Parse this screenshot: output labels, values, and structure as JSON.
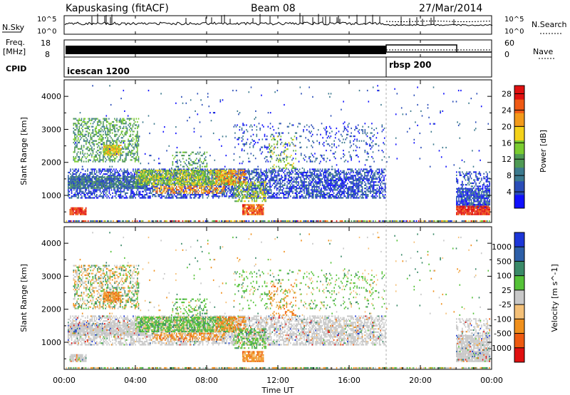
{
  "header": {
    "station": "Kapuskasing (fitACF)",
    "beam": "Beam 08",
    "date": "27/Mar/2014"
  },
  "noise_panel": {
    "left_label": "N.Sky",
    "right_label": "N.Search",
    "tick_top": "10^5",
    "tick_bottom": "10^0",
    "right_tick_top": "10^5",
    "right_tick_bottom": "10^0"
  },
  "freq_panel": {
    "label_line1": "Freq.",
    "label_line2": "[MHz]",
    "tick_top": "18",
    "tick_bottom": "8",
    "right_label": "Nave",
    "right_tick_top": "60",
    "right_tick_bottom": "0"
  },
  "cpid_panel": {
    "label": "CPID",
    "modes": [
      "icescan 1200",
      "rbsp 200"
    ]
  },
  "chart_data": [
    {
      "type": "heatmap",
      "title": "",
      "ylabel": "Slant Range [km]",
      "xlabel": "",
      "y_ticks": [
        "1000",
        "2000",
        "3000",
        "4000"
      ],
      "ylim": [
        180,
        4500
      ],
      "colorbar": {
        "label": "Power [dB]",
        "ticks": [
          "4",
          "8",
          "12",
          "16",
          "20",
          "24",
          "28"
        ],
        "range": [
          0,
          30
        ],
        "colors": [
          "#1010ff",
          "#2a4db8",
          "#3c7a8e",
          "#4f9a55",
          "#7acc30",
          "#f4d21a",
          "#f39a1a",
          "#f05a14",
          "#e01010"
        ]
      }
    },
    {
      "type": "heatmap",
      "title": "",
      "ylabel": "Slant Range [km]",
      "xlabel": "Time UT",
      "x_ticks": [
        "00:00",
        "04:00",
        "08:00",
        "12:00",
        "16:00",
        "20:00",
        "00:00"
      ],
      "y_ticks": [
        "1000",
        "2000",
        "3000",
        "4000"
      ],
      "ylim": [
        180,
        4500
      ],
      "colorbar": {
        "label": "Velocity [m s^-1]",
        "ticks": [
          "1000",
          "500",
          "100",
          "25",
          "-25",
          "-100",
          "-500",
          "-1000"
        ],
        "colors": [
          "#1c36d8",
          "#2d5fa8",
          "#3a8a68",
          "#55c238",
          "#c8c8c8",
          "#f4c078",
          "#f0901c",
          "#ee5a10",
          "#e01010"
        ]
      }
    }
  ],
  "time_axis": {
    "xlabel": "Time UT",
    "ticks": [
      "00:00",
      "04:00",
      "08:00",
      "12:00",
      "16:00",
      "20:00",
      "00:00"
    ]
  }
}
